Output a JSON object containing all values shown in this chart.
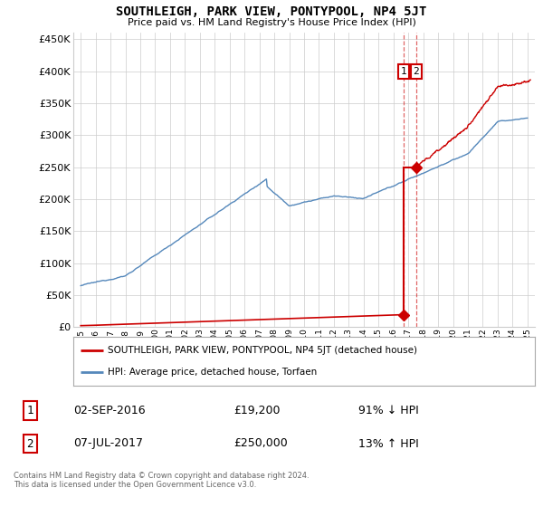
{
  "title": "SOUTHLEIGH, PARK VIEW, PONTYPOOL, NP4 5JT",
  "subtitle": "Price paid vs. HM Land Registry's House Price Index (HPI)",
  "ytick_values": [
    0,
    50000,
    100000,
    150000,
    200000,
    250000,
    300000,
    350000,
    400000,
    450000
  ],
  "ylim": [
    0,
    460000
  ],
  "xlim_start": 1994.5,
  "xlim_end": 2025.5,
  "hpi_color": "#5588bb",
  "sale_color": "#cc0000",
  "dashed_color": "#cc0000",
  "legend_red_label": "SOUTHLEIGH, PARK VIEW, PONTYPOOL, NP4 5JT (detached house)",
  "legend_blue_label": "HPI: Average price, detached house, Torfaen",
  "table_rows": [
    {
      "num": "1",
      "date": "02-SEP-2016",
      "price": "£19,200",
      "hpi": "91% ↓ HPI"
    },
    {
      "num": "2",
      "date": "07-JUL-2017",
      "price": "£250,000",
      "hpi": "13% ↑ HPI"
    }
  ],
  "footnote": "Contains HM Land Registry data © Crown copyright and database right 2024.\nThis data is licensed under the Open Government Licence v3.0.",
  "background_color": "#ffffff",
  "grid_color": "#cccccc",
  "sale1_x": 2016.67,
  "sale1_y": 19200,
  "sale2_x": 2017.52,
  "sale2_y": 250000,
  "ann1_y": 400000,
  "ann2_y": 400000,
  "hpi_start_year": 1995,
  "hpi_end_year": 2025
}
